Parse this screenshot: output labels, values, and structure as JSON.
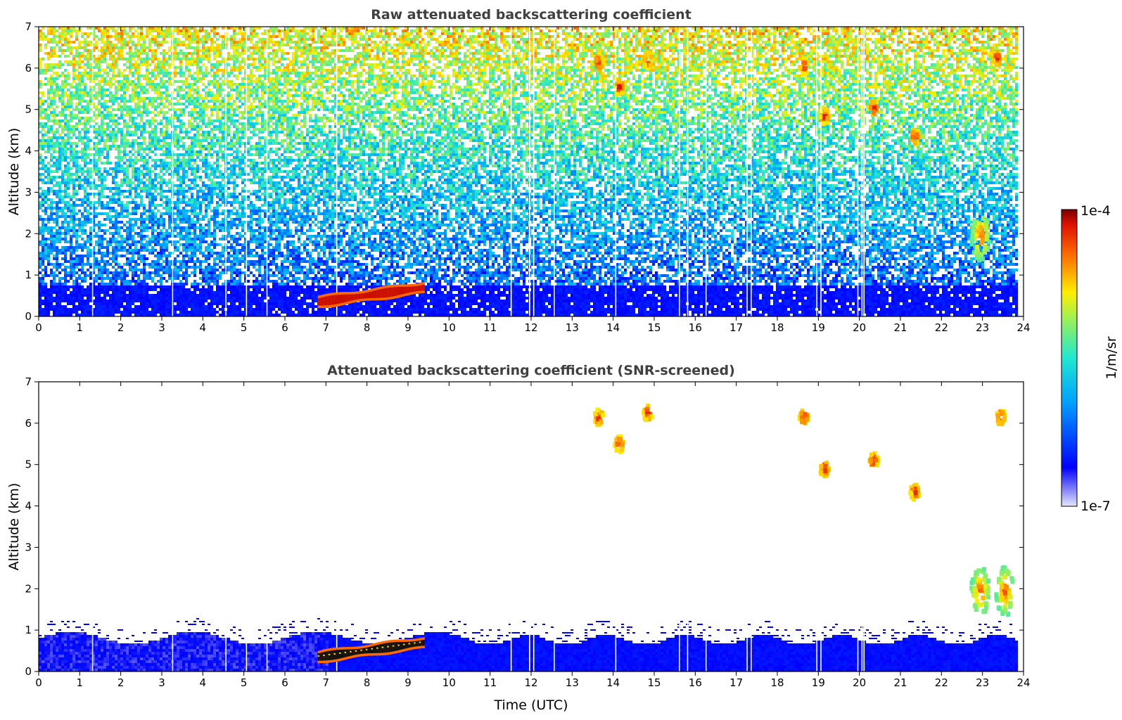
{
  "chart_data": [
    {
      "type": "heatmap",
      "title": "Raw attenuated backscattering coefficient",
      "xlabel": "",
      "ylabel": "Altitude (km)",
      "xlim": [
        0,
        24
      ],
      "ylim": [
        0,
        7
      ],
      "xticks": [
        "0",
        "1",
        "2",
        "3",
        "4",
        "5",
        "6",
        "7",
        "8",
        "9",
        "10",
        "11",
        "12",
        "13",
        "14",
        "15",
        "16",
        "17",
        "18",
        "19",
        "20",
        "21",
        "22",
        "23",
        "24"
      ],
      "yticks": [
        "0",
        "1",
        "2",
        "3",
        "4",
        "5",
        "6",
        "7"
      ],
      "data_end_hour": 23.8,
      "background": "noisy signal: strong boundary layer (0–0.7 km) in blue, noise increasing with altitude (blue → cyan → yellow/red near 7 km)",
      "features": [
        {
          "name": "elevated aerosol layer",
          "t_start": 6.8,
          "t_end": 9.4,
          "alt_start_km": 0.35,
          "alt_end_km": 0.7,
          "level": "1e-4"
        },
        {
          "name": "cloud",
          "t": 13.6,
          "alt_km": 6.2
        },
        {
          "name": "cloud",
          "t": 14.1,
          "alt_km": 5.6
        },
        {
          "name": "cloud",
          "t": 14.8,
          "alt_km": 6.25
        },
        {
          "name": "cloud",
          "t": 18.6,
          "alt_km": 6.1
        },
        {
          "name": "cloud",
          "t": 19.1,
          "alt_km": 4.9
        },
        {
          "name": "cloud",
          "t": 20.3,
          "alt_km": 5.1
        },
        {
          "name": "cloud",
          "t": 21.3,
          "alt_km": 4.4
        },
        {
          "name": "cloud",
          "t": 22.9,
          "alt_km": 2.0
        },
        {
          "name": "cloud",
          "t": 23.3,
          "alt_km": 6.3
        }
      ]
    },
    {
      "type": "heatmap",
      "title": "Attenuated backscattering coefficient (SNR-screened)",
      "xlabel": "Time (UTC)",
      "ylabel": "Altitude (km)",
      "xlim": [
        0,
        24
      ],
      "ylim": [
        0,
        7
      ],
      "xticks": [
        "0",
        "1",
        "2",
        "3",
        "4",
        "5",
        "6",
        "7",
        "8",
        "9",
        "10",
        "11",
        "12",
        "13",
        "14",
        "15",
        "16",
        "17",
        "18",
        "19",
        "20",
        "21",
        "22",
        "23",
        "24"
      ],
      "yticks": [
        "0",
        "1",
        "2",
        "3",
        "4",
        "5",
        "6",
        "7"
      ],
      "data_end_hour": 23.8,
      "background": "noise screened out (white); boundary layer 0–1 km retained in blue",
      "features": [
        {
          "name": "elevated aerosol layer",
          "t_start": 6.8,
          "t_end": 9.4,
          "alt_start_km": 0.35,
          "alt_end_km": 0.7,
          "level": "1e-4"
        },
        {
          "name": "cloud",
          "t": 13.6,
          "alt_km": 6.2
        },
        {
          "name": "cloud",
          "t": 14.1,
          "alt_km": 5.55
        },
        {
          "name": "cloud",
          "t": 14.8,
          "alt_km": 6.3
        },
        {
          "name": "cloud",
          "t": 18.6,
          "alt_km": 6.2
        },
        {
          "name": "cloud",
          "t": 19.1,
          "alt_km": 4.95
        },
        {
          "name": "cloud",
          "t": 20.3,
          "alt_km": 5.15
        },
        {
          "name": "cloud",
          "t": 21.3,
          "alt_km": 4.4
        },
        {
          "name": "cloud",
          "t": 22.9,
          "alt_km": 2.0
        },
        {
          "name": "cloud",
          "t": 23.5,
          "alt_km": 2.0
        },
        {
          "name": "cloud",
          "t": 23.4,
          "alt_km": 6.2
        }
      ]
    }
  ],
  "colorbar": {
    "label": "1/m/sr",
    "min_label": "1e-7",
    "max_label": "1e-4",
    "scale": "log",
    "colormap": "jet"
  }
}
